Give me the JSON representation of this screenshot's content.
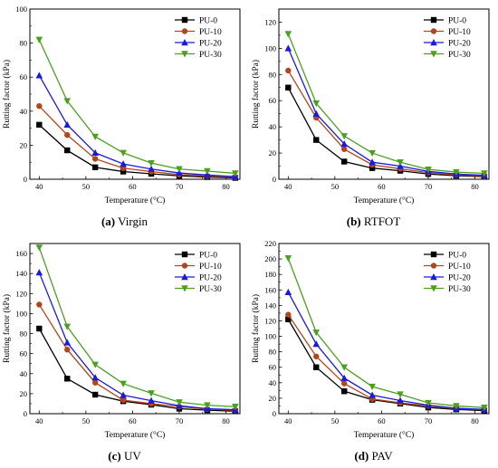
{
  "chart_data": [
    {
      "type": "line",
      "caption_letter": "(a)",
      "caption_text": "Virgin",
      "xlabel": "Temperature (°C)",
      "ylabel": "Rutting factor (kPa)",
      "xlim": [
        38,
        83
      ],
      "ylim": [
        0,
        100
      ],
      "xticks": [
        40,
        50,
        60,
        70,
        80
      ],
      "yticks": [
        0,
        20,
        40,
        60,
        80,
        100
      ],
      "legend": "top-right",
      "x": [
        40,
        46,
        52,
        58,
        64,
        70,
        76,
        82
      ],
      "series": [
        {
          "name": "PU-0",
          "color": "#000000",
          "marker": "square",
          "values": [
            32,
            17,
            7,
            4.5,
            3.2,
            2,
            1.3,
            0.8
          ]
        },
        {
          "name": "PU-10",
          "color": "#b5451b",
          "marker": "circle",
          "values": [
            43,
            26,
            12,
            6.5,
            4.5,
            2.7,
            1.9,
            1.2
          ]
        },
        {
          "name": "PU-20",
          "color": "#1a1adc",
          "marker": "triangle",
          "values": [
            61,
            32,
            15.5,
            9,
            6,
            3.7,
            2.5,
            1.5
          ]
        },
        {
          "name": "PU-30",
          "color": "#4ca020",
          "marker": "triangle-down",
          "values": [
            82,
            46,
            25,
            15.5,
            9.5,
            6,
            4.8,
            3.5
          ]
        }
      ]
    },
    {
      "type": "line",
      "caption_letter": "(b)",
      "caption_text": "RTFOT",
      "xlabel": "Temperature (°C)",
      "ylabel": "Rutting factor (kPa)",
      "xlim": [
        38,
        83
      ],
      "ylim": [
        0,
        130
      ],
      "xticks": [
        40,
        50,
        60,
        70,
        80
      ],
      "yticks": [
        0,
        20,
        40,
        60,
        80,
        100,
        120
      ],
      "legend": "top-right",
      "x": [
        40,
        46,
        52,
        58,
        64,
        70,
        76,
        82
      ],
      "series": [
        {
          "name": "PU-0",
          "color": "#000000",
          "marker": "square",
          "values": [
            70,
            30,
            13.5,
            8.5,
            6.5,
            4,
            2.7,
            2
          ]
        },
        {
          "name": "PU-10",
          "color": "#b5451b",
          "marker": "circle",
          "values": [
            83,
            47,
            23,
            11,
            8,
            5,
            3.3,
            2.5
          ]
        },
        {
          "name": "PU-20",
          "color": "#1a1adc",
          "marker": "triangle",
          "values": [
            100,
            50,
            27,
            13,
            10,
            6,
            4,
            3
          ]
        },
        {
          "name": "PU-30",
          "color": "#4ca020",
          "marker": "triangle-down",
          "values": [
            111,
            58,
            33,
            20,
            13,
            7.5,
            5.5,
            4.5
          ]
        }
      ]
    },
    {
      "type": "line",
      "caption_letter": "(c)",
      "caption_text": "UV",
      "xlabel": "Temperature (°C)",
      "ylabel": "Rutting factor (kPa)",
      "xlim": [
        38,
        83
      ],
      "ylim": [
        0,
        170
      ],
      "xticks": [
        40,
        50,
        60,
        70,
        80
      ],
      "yticks": [
        0,
        20,
        40,
        60,
        80,
        100,
        120,
        140,
        160
      ],
      "legend": "top-right",
      "x": [
        40,
        46,
        52,
        58,
        64,
        70,
        76,
        82
      ],
      "series": [
        {
          "name": "PU-0",
          "color": "#000000",
          "marker": "square",
          "values": [
            85,
            35,
            19,
            12.5,
            9,
            5,
            3.5,
            2.5
          ]
        },
        {
          "name": "PU-10",
          "color": "#b5451b",
          "marker": "circle",
          "values": [
            109,
            64,
            31,
            13.5,
            10,
            7,
            4.5,
            3.5
          ]
        },
        {
          "name": "PU-20",
          "color": "#1a1adc",
          "marker": "triangle",
          "values": [
            141,
            71,
            36,
            18.5,
            13,
            8,
            5,
            4
          ]
        },
        {
          "name": "PU-30",
          "color": "#4ca020",
          "marker": "triangle-down",
          "values": [
            166,
            87,
            49,
            30,
            20.5,
            11.5,
            8.5,
            7
          ]
        }
      ]
    },
    {
      "type": "line",
      "caption_letter": "(d)",
      "caption_text": "PAV",
      "xlabel": "Temperature (°C)",
      "ylabel": "Rutting factor (kPa)",
      "xlim": [
        38,
        83
      ],
      "ylim": [
        0,
        220
      ],
      "xticks": [
        40,
        50,
        60,
        70,
        80
      ],
      "yticks": [
        0,
        20,
        40,
        60,
        80,
        100,
        120,
        140,
        160,
        180,
        200,
        220
      ],
      "legend": "top-right",
      "x": [
        40,
        46,
        52,
        58,
        64,
        70,
        76,
        82
      ],
      "series": [
        {
          "name": "PU-0",
          "color": "#000000",
          "marker": "square",
          "values": [
            122,
            60,
            29,
            18,
            13,
            8,
            5.5,
            4
          ]
        },
        {
          "name": "PU-10",
          "color": "#b5451b",
          "marker": "circle",
          "values": [
            128,
            74,
            39,
            19,
            14,
            10,
            6.5,
            5
          ]
        },
        {
          "name": "PU-20",
          "color": "#1a1adc",
          "marker": "triangle",
          "values": [
            157,
            90,
            46,
            24,
            17,
            11,
            7,
            5.5
          ]
        },
        {
          "name": "PU-30",
          "color": "#4ca020",
          "marker": "triangle-down",
          "values": [
            201,
            105,
            60,
            35,
            25,
            14,
            10,
            8
          ]
        }
      ]
    }
  ]
}
